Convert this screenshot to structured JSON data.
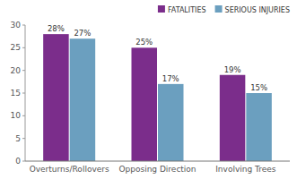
{
  "chart_data": {
    "type": "bar",
    "categories": [
      "Overturns/Rollovers",
      "Opposing Direction",
      "Involving Trees"
    ],
    "series": [
      {
        "name": "FATALITIES",
        "color": "#7B2D8B",
        "values": [
          28,
          25,
          19
        ],
        "value_labels": [
          "28%",
          "25%",
          "19%"
        ]
      },
      {
        "name": "SERIOUS INJURIES",
        "color": "#6B9FBF",
        "values": [
          27,
          17,
          15
        ],
        "value_labels": [
          "27%",
          "17%",
          "15%"
        ]
      }
    ],
    "ylim": [
      0,
      30
    ],
    "yticks": [
      0,
      5,
      10,
      15,
      20,
      25,
      30
    ],
    "data_labels": true,
    "legend": "upper right",
    "grid": false
  }
}
